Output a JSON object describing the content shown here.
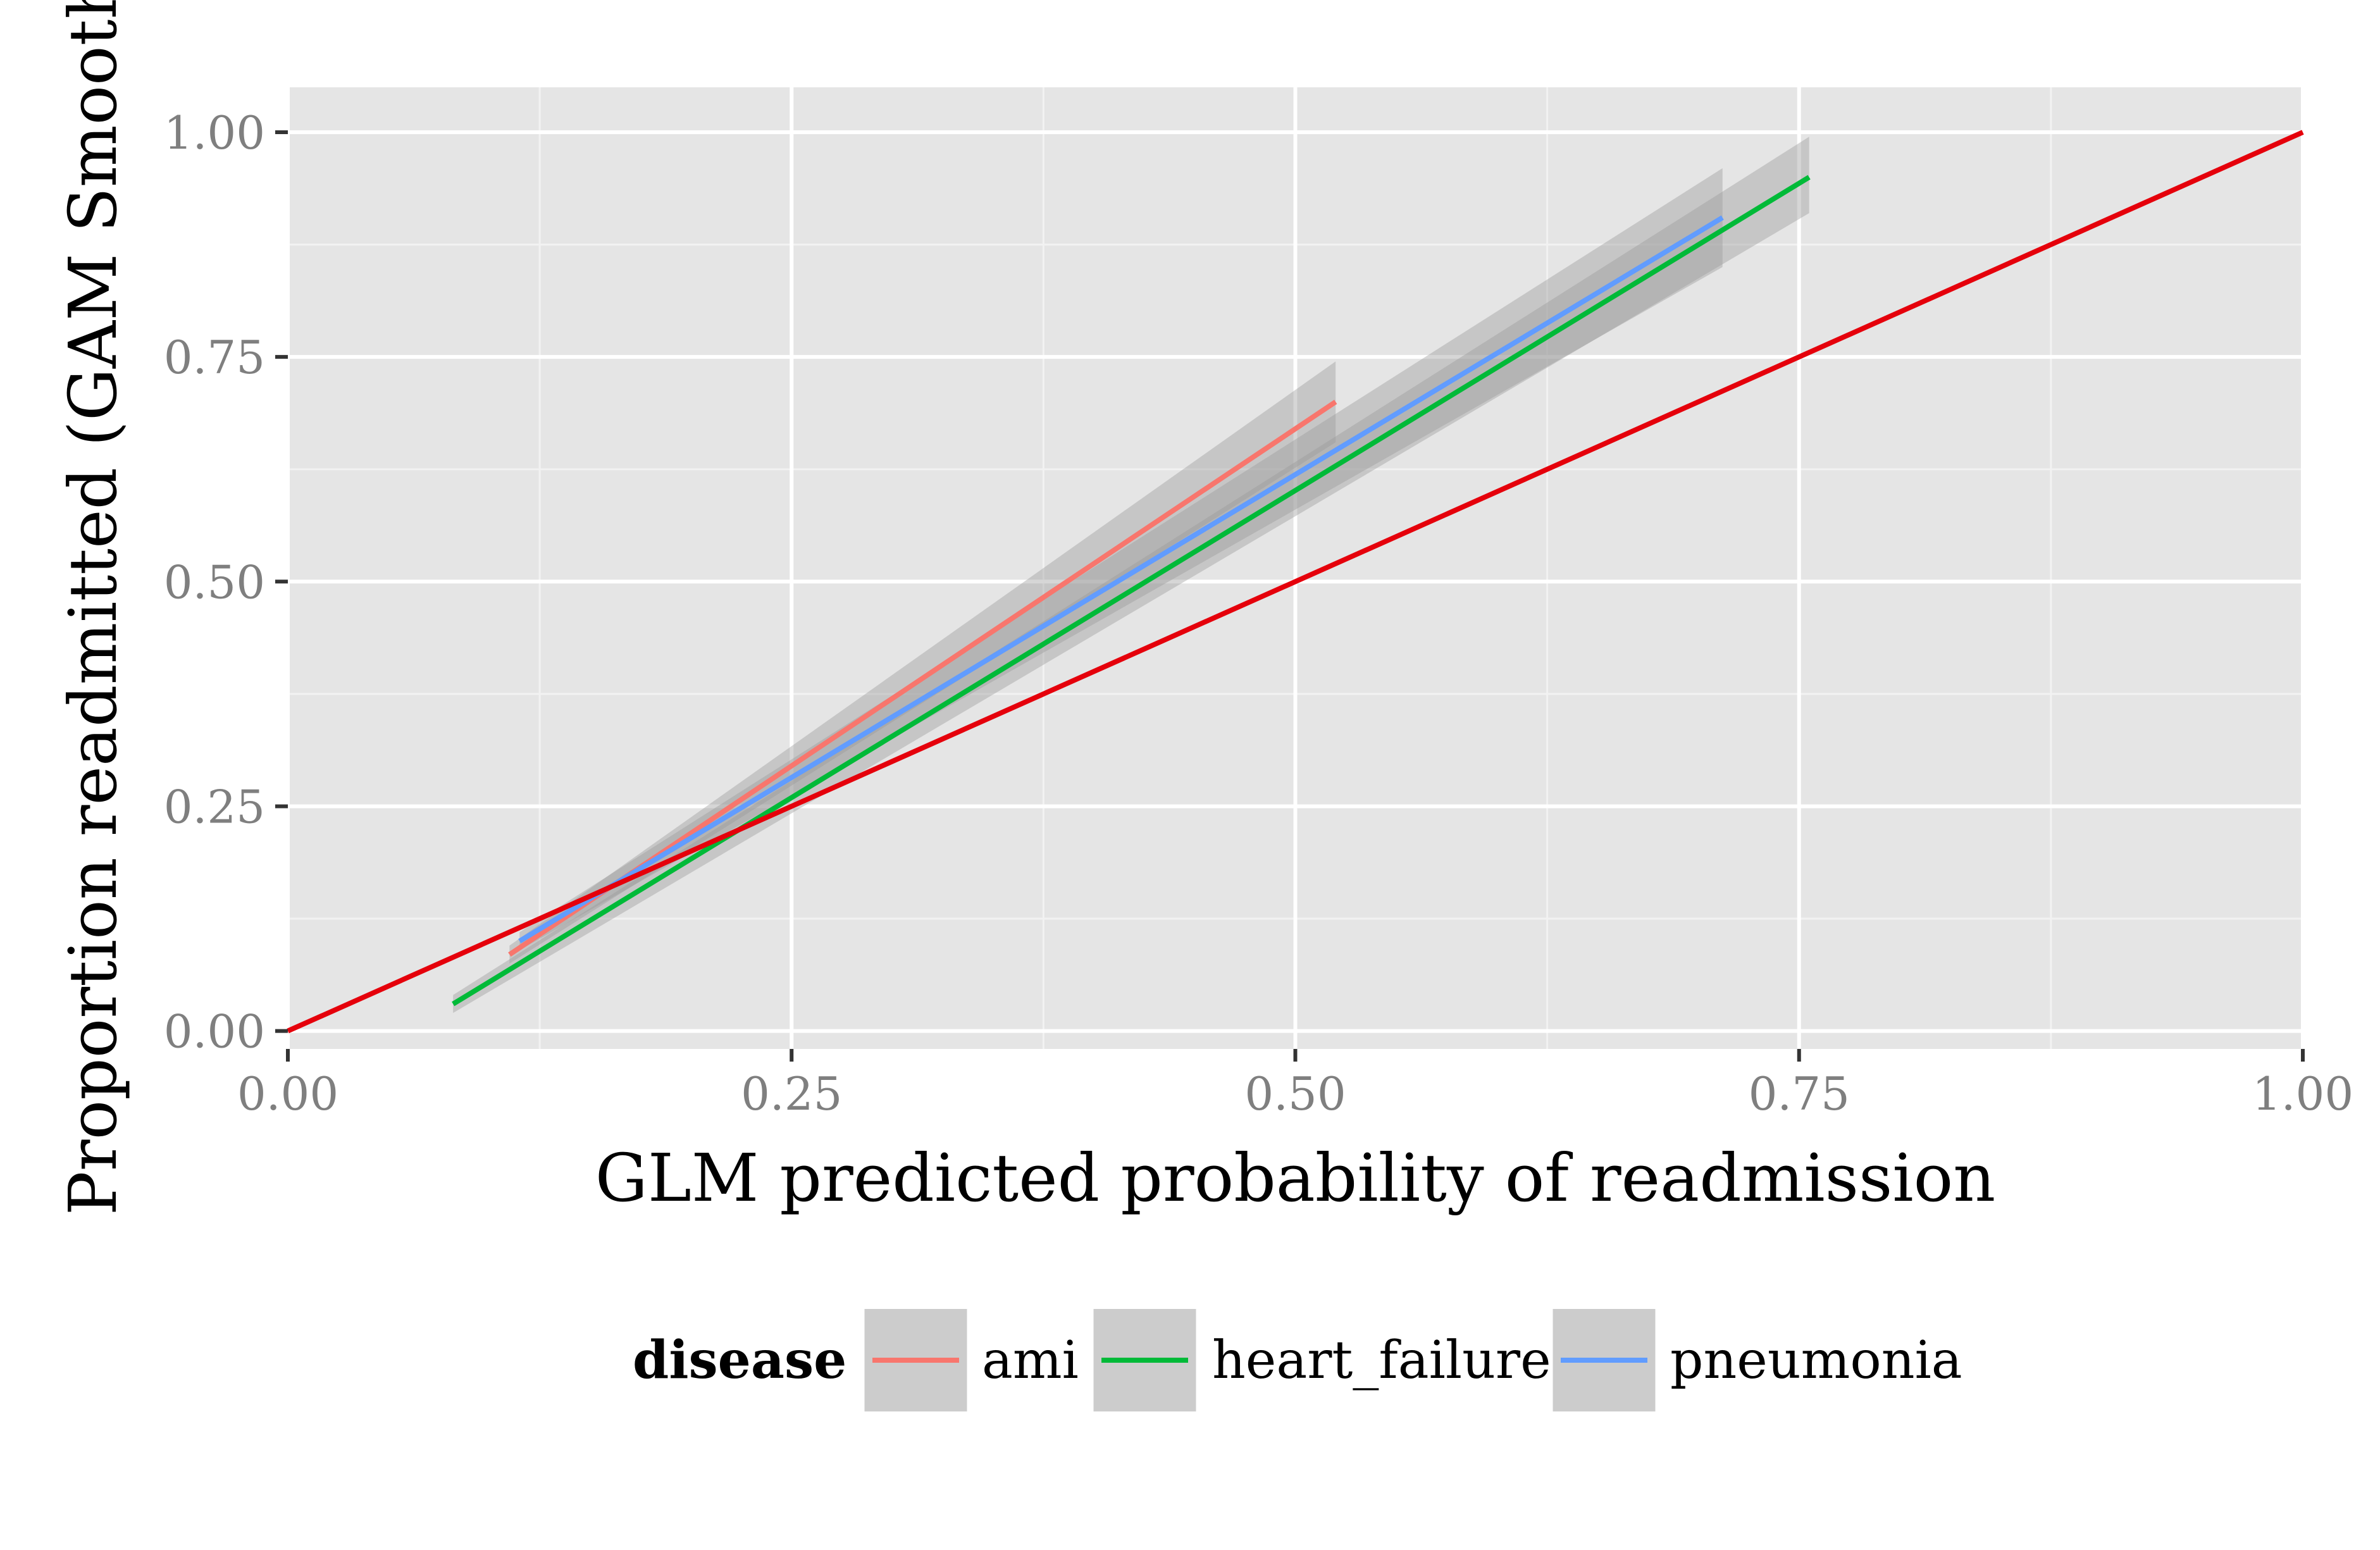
{
  "chart_data": {
    "type": "line",
    "xlabel": "GLM predicted probability of readmission",
    "ylabel": "Proportion readmitted (GAM Smoothed)",
    "xlim": [
      0,
      1
    ],
    "ylim": [
      -0.02,
      1.05
    ],
    "x_ticks": [
      {
        "value": 0.0,
        "label": "0.00"
      },
      {
        "value": 0.25,
        "label": "0.25"
      },
      {
        "value": 0.5,
        "label": "0.50"
      },
      {
        "value": 0.75,
        "label": "0.75"
      },
      {
        "value": 1.0,
        "label": "1.00"
      }
    ],
    "y_ticks": [
      {
        "value": 0.0,
        "label": "0.00"
      },
      {
        "value": 0.25,
        "label": "0.25"
      },
      {
        "value": 0.5,
        "label": "0.50"
      },
      {
        "value": 0.75,
        "label": "0.75"
      },
      {
        "value": 1.0,
        "label": "1.00"
      }
    ],
    "grid": true,
    "legend": {
      "title": "disease",
      "position": "bottom"
    },
    "series": [
      {
        "name": "ami",
        "color": "#F8766D",
        "x": [
          0.11,
          0.52
        ],
        "y": [
          0.085,
          0.7
        ],
        "band_lower": [
          0.075,
          0.655
        ],
        "band_upper": [
          0.095,
          0.745
        ]
      },
      {
        "name": "heart_failure",
        "color": "#00BA38",
        "x": [
          0.082,
          0.755
        ],
        "y": [
          0.03,
          0.95
        ],
        "band_lower": [
          0.02,
          0.91
        ],
        "band_upper": [
          0.04,
          0.995
        ]
      },
      {
        "name": "pneumonia",
        "color": "#619CFF",
        "x": [
          0.115,
          0.712
        ],
        "y": [
          0.1,
          0.905
        ],
        "band_lower": [
          0.09,
          0.85
        ],
        "band_upper": [
          0.11,
          0.96
        ]
      }
    ],
    "reference_line": {
      "color": "#E5000B",
      "x": [
        0,
        1
      ],
      "y": [
        0,
        1
      ]
    }
  }
}
